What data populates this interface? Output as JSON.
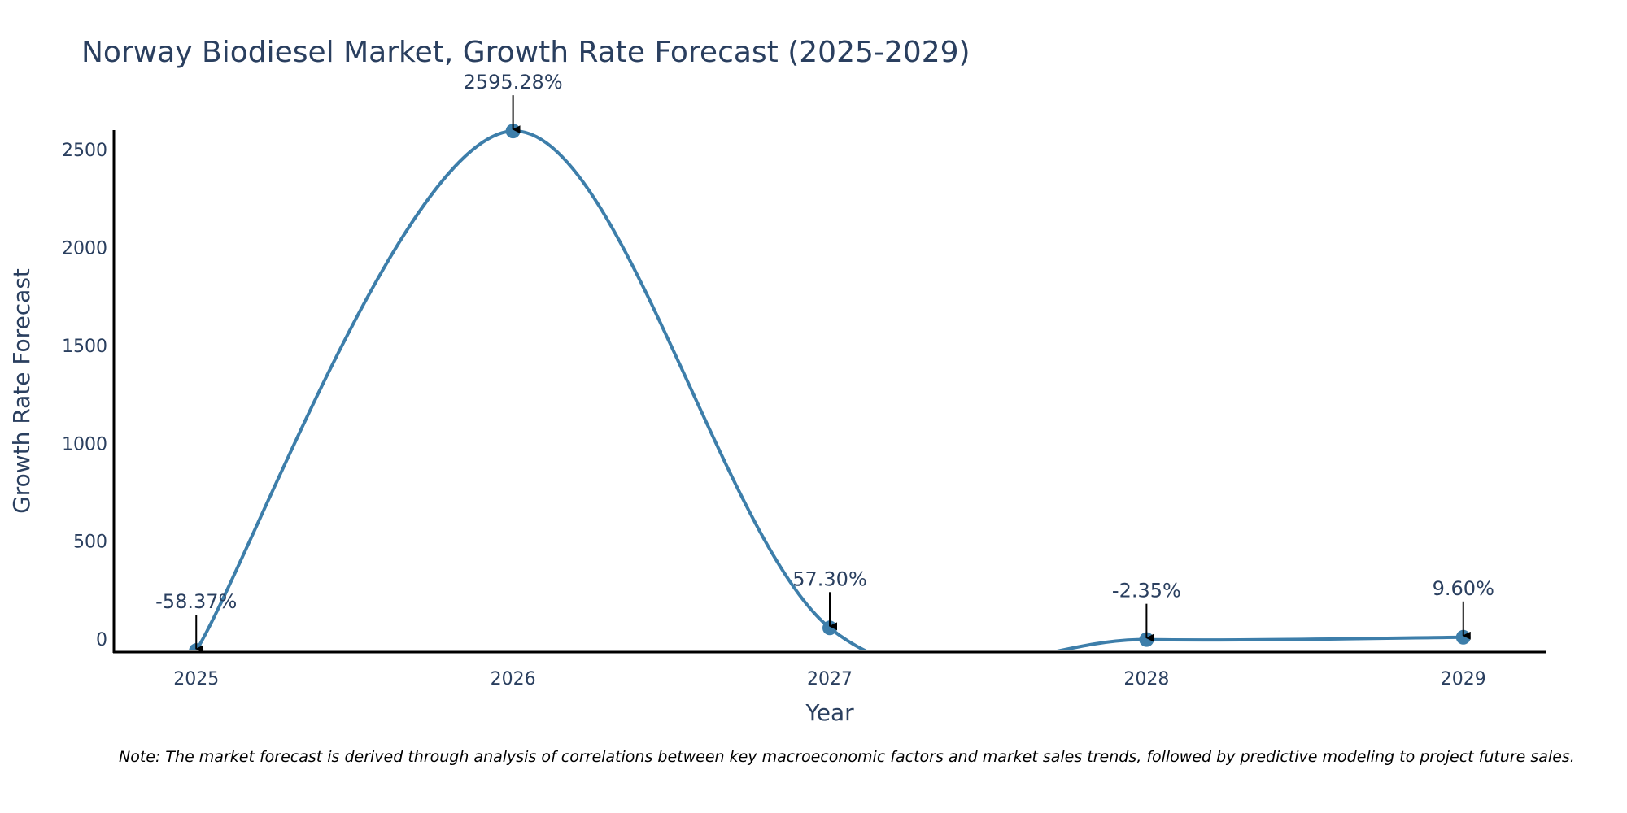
{
  "chart_data": {
    "type": "line",
    "title": "Norway Biodiesel Market, Growth Rate Forecast (2025-2029)",
    "xlabel": "Year",
    "ylabel": "Growth Rate Forecast",
    "categories": [
      "2025",
      "2026",
      "2027",
      "2028",
      "2029"
    ],
    "series": [
      {
        "name": "Growth Rate Forecast",
        "values": [
          -58.37,
          2595.28,
          57.3,
          -2.35,
          9.6
        ],
        "data_labels": [
          "-58.37%",
          "2595.28%",
          "57.30%",
          "-2.35%",
          "9.60%"
        ],
        "color": "#3d7eaa"
      }
    ],
    "xlim": [
      2024.74,
      2029.26
    ],
    "ylim": [
      -66,
      2600
    ],
    "yticks": [
      0,
      500,
      1000,
      1500,
      2000,
      2500
    ],
    "smoothing": "spline",
    "grid": false,
    "legend": "none"
  },
  "footnote": "Note: The market forecast is derived through analysis of correlations between key macroeconomic factors and market sales trends, followed by predictive modeling to project future sales."
}
